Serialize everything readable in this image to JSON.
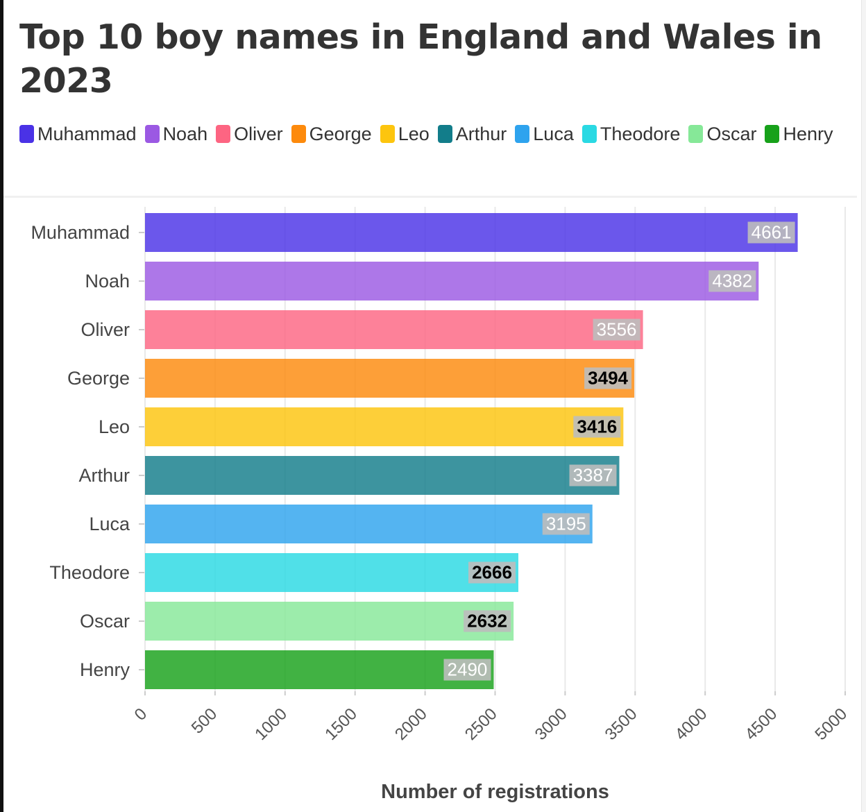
{
  "title": "Top 10 boy names in England and Wales in 2023",
  "legend": [
    {
      "label": "Muhammad",
      "color": "#4a32e6"
    },
    {
      "label": "Noah",
      "color": "#9b59e3"
    },
    {
      "label": "Oliver",
      "color": "#fd6582"
    },
    {
      "label": "George",
      "color": "#fd8a0c"
    },
    {
      "label": "Leo",
      "color": "#fdc50e"
    },
    {
      "label": "Arthur",
      "color": "#127d8a"
    },
    {
      "label": "Luca",
      "color": "#2ea3ee"
    },
    {
      "label": "Theodore",
      "color": "#2ad9e3"
    },
    {
      "label": "Oscar",
      "color": "#86e898"
    },
    {
      "label": "Henry",
      "color": "#17a11a"
    }
  ],
  "chart_data": {
    "type": "bar",
    "orientation": "horizontal",
    "title": "Top 10 boy names in England and Wales in 2023",
    "xlabel": "Number of registrations",
    "ylabel": "",
    "xlim": [
      0,
      5000
    ],
    "x_ticks": [
      "0",
      "500",
      "1000",
      "1500",
      "2000",
      "2500",
      "3000",
      "3500",
      "4000",
      "4500",
      "5000"
    ],
    "grid": true,
    "categories": [
      "Muhammad",
      "Noah",
      "Oliver",
      "George",
      "Leo",
      "Arthur",
      "Luca",
      "Theodore",
      "Oscar",
      "Henry"
    ],
    "values": [
      4661,
      4382,
      3556,
      3494,
      3416,
      3387,
      3195,
      2666,
      2632,
      2490
    ],
    "data_labels": [
      "4661",
      "4382",
      "3556",
      "3494",
      "3416",
      "3387",
      "3195",
      "2666",
      "2632",
      "2490"
    ],
    "colors": [
      "#4a32e6",
      "#9b59e3",
      "#fd6582",
      "#fd8a0c",
      "#fdc50e",
      "#127d8a",
      "#2ea3ee",
      "#2ad9e3",
      "#86e898",
      "#17a11a"
    ],
    "label_text_colors": [
      "#ffffff",
      "#ffffff",
      "#ffffff",
      "#000000",
      "#000000",
      "#ffffff",
      "#ffffff",
      "#000000",
      "#000000",
      "#ffffff"
    ]
  }
}
